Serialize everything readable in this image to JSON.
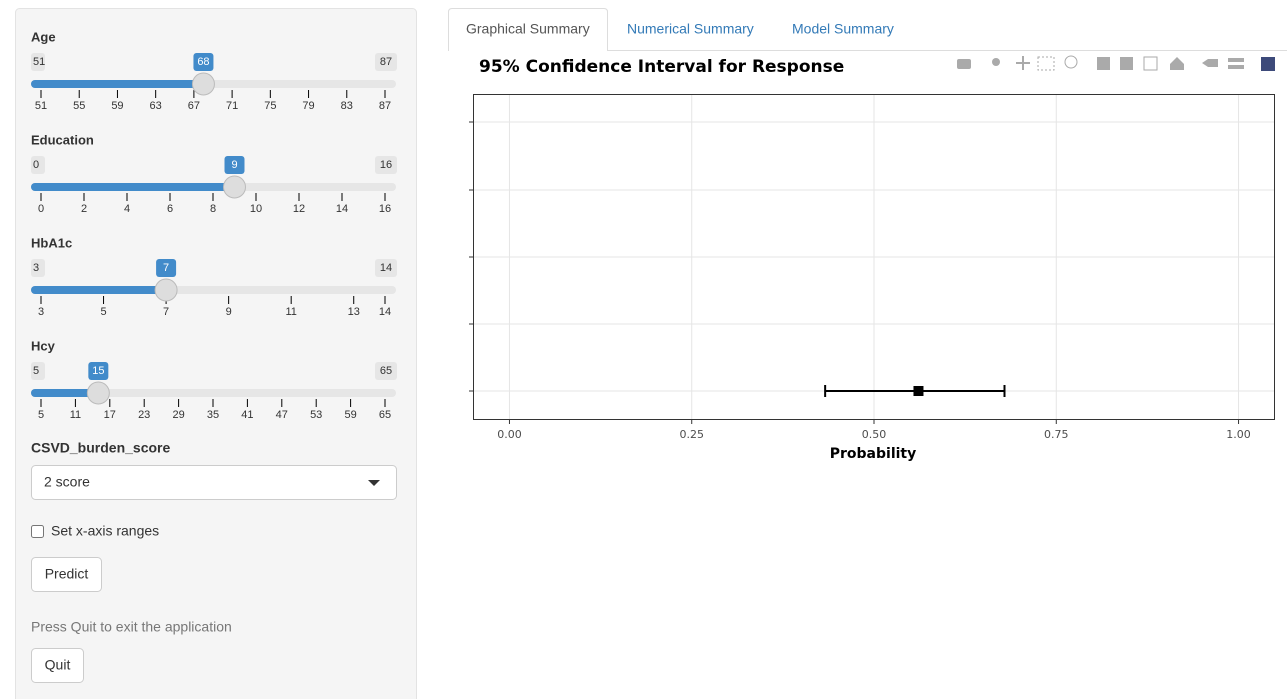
{
  "sidebar": {
    "sliders": [
      {
        "label": "Age",
        "min": 51,
        "max": 87,
        "value": 68,
        "ticks": [
          51,
          55,
          59,
          63,
          67,
          71,
          75,
          79,
          83,
          87
        ]
      },
      {
        "label": "Education",
        "min": 0,
        "max": 16,
        "value": 9,
        "ticks": [
          0,
          2,
          4,
          6,
          8,
          10,
          12,
          14,
          16
        ]
      },
      {
        "label": "HbA1c",
        "min": 3,
        "max": 14,
        "value": 7,
        "ticks": [
          3,
          5,
          7,
          9,
          11,
          13,
          14
        ]
      },
      {
        "label": "Hcy",
        "min": 5,
        "max": 65,
        "value": 15,
        "ticks": [
          5,
          11,
          17,
          23,
          29,
          35,
          41,
          47,
          53,
          59,
          65
        ]
      }
    ],
    "select": {
      "label": "CSVD_burden_score",
      "value": "2 score"
    },
    "checkbox": {
      "label": "Set x-axis ranges"
    },
    "predict_button": "Predict",
    "note": "Press Quit to exit the application",
    "quit_button": "Quit"
  },
  "tabs": [
    "Graphical Summary",
    "Numerical Summary",
    "Model Summary"
  ],
  "chart_data": {
    "type": "errorbar",
    "title": "95% Confidence Interval for Response",
    "x_label": "Probability",
    "xlim": [
      -0.05,
      1.05
    ],
    "xticks": [
      {
        "value": 0,
        "label": "0.00"
      },
      {
        "value": 0.25,
        "label": "0.25"
      },
      {
        "value": 0.5,
        "label": "0.50"
      },
      {
        "value": 0.75,
        "label": "0.75"
      },
      {
        "value": 1,
        "label": "1.00"
      }
    ],
    "values": [
      0.561
    ],
    "lower": [
      0.433
    ],
    "upper": [
      0.679
    ],
    "color": "#000000",
    "grid": true
  }
}
